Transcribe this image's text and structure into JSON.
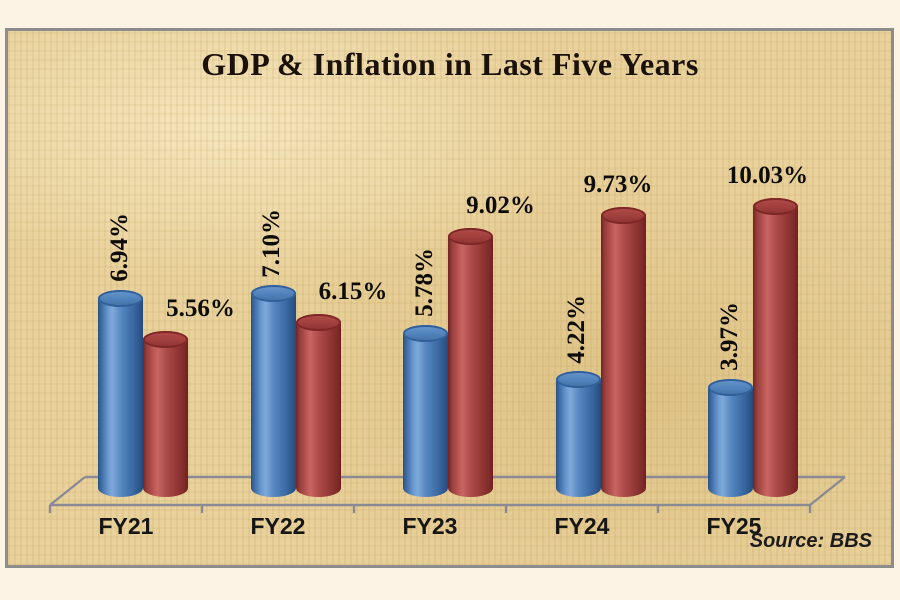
{
  "title": "GDP & Inflation in Last Five Years",
  "source_label": "Source: BBS",
  "colors": {
    "margin_background": "#fdf3e5",
    "panel_background": "#e9d19b",
    "panel_border": "#8c8c8c",
    "axis_line": "#8a8a94",
    "gdp_bar": "#4a7cb8",
    "inflation_bar": "#a94846",
    "label_text": "#0e0c08"
  },
  "chart_data": {
    "type": "bar",
    "bar_style": "3d-cylinder",
    "title": "GDP & Inflation in Last Five Years",
    "categories": [
      "FY21",
      "FY22",
      "FY23",
      "FY24",
      "FY25"
    ],
    "series": [
      {
        "name": "GDP",
        "color": "#4a7cb8",
        "values": [
          6.94,
          7.1,
          5.78,
          4.22,
          3.97
        ],
        "data_labels": [
          "6.94%",
          "7.10%",
          "5.78%",
          "4.22%",
          "3.97%"
        ],
        "label_orientation": "vertical"
      },
      {
        "name": "Inflation",
        "color": "#a94846",
        "values": [
          5.56,
          6.15,
          9.02,
          9.73,
          10.03
        ],
        "data_labels": [
          "5.56%",
          "6.15%",
          "9.02%",
          "9.73%",
          "10.03%"
        ],
        "label_orientation": "horizontal"
      }
    ],
    "xlabel": "",
    "ylabel": "",
    "ylim": [
      0,
      10.5
    ],
    "grid": false,
    "legend": "none",
    "source": "Source: BBS"
  }
}
